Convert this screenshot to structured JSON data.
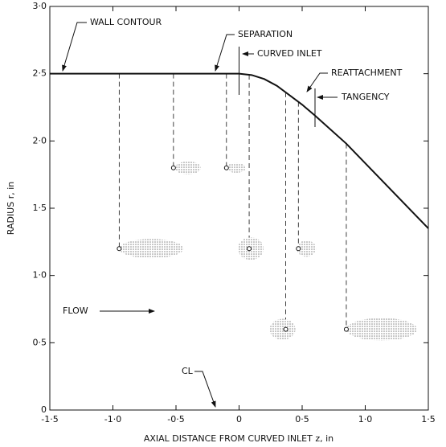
{
  "chart_data": {
    "type": "line",
    "xlabel": "AXIAL DISTANCE FROM CURVED INLET z, in",
    "ylabel": "RADIUS r, in",
    "xlim": [
      -1.5,
      1.5
    ],
    "ylim": [
      0,
      3
    ],
    "xticks": [
      {
        "value": -1.5,
        "label": "-1·5"
      },
      {
        "value": -1.0,
        "label": "-1·0"
      },
      {
        "value": -0.5,
        "label": "-0·5"
      },
      0,
      {
        "value": 0.5,
        "label": "0·5"
      },
      {
        "value": 1.0,
        "label": "1·0"
      },
      {
        "value": 1.5,
        "label": "1·5"
      }
    ],
    "yticks": [
      0,
      {
        "value": 0.5,
        "label": "0·5"
      },
      {
        "value": 1.0,
        "label": "1·0"
      },
      {
        "value": 1.5,
        "label": "1·5"
      },
      {
        "value": 2.0,
        "label": "2·0"
      },
      {
        "value": 2.5,
        "label": "2·5"
      },
      {
        "value": 3.0,
        "label": "3·0"
      }
    ],
    "series": [
      {
        "name": "WALL CONTOUR",
        "color": "#111111",
        "x": [
          -1.5,
          -0.2,
          0,
          0.1,
          0.2,
          0.3,
          0.4,
          0.5,
          0.6,
          0.85,
          1.5
        ],
        "values": [
          2.5,
          2.5,
          2.5,
          2.49,
          2.46,
          2.41,
          2.34,
          2.27,
          2.19,
          1.98,
          1.35
        ]
      }
    ],
    "probes": {
      "x": [
        -0.95,
        -0.52,
        -0.1,
        0.08,
        0.37,
        0.47,
        0.85
      ],
      "y": [
        1.2,
        1.8,
        1.8,
        1.2,
        0.6,
        1.2,
        0.6
      ]
    },
    "annotations": [
      "SEPARATION",
      "CURVED INLET",
      "REATTACHMENT",
      "TANGENCY",
      "FLOW",
      "CL"
    ]
  }
}
